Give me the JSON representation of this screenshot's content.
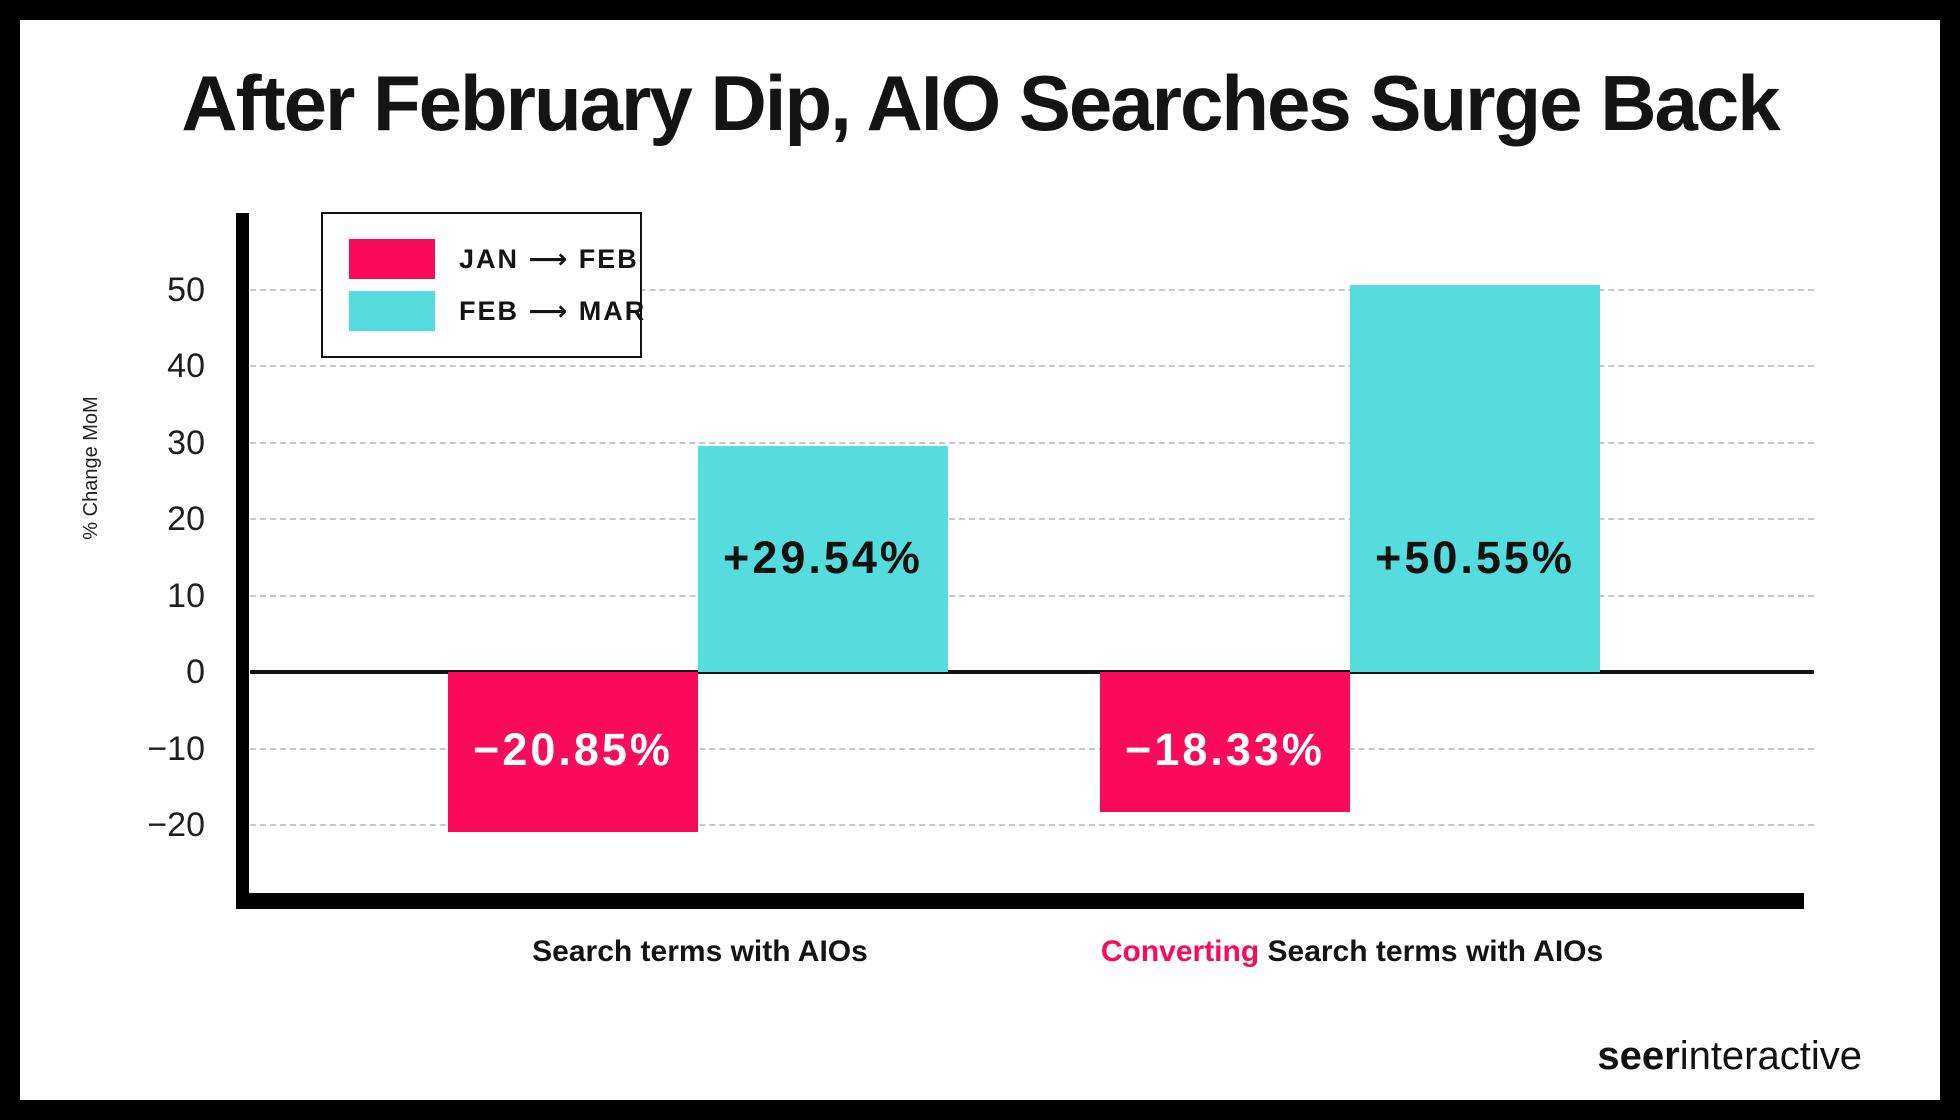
{
  "title": "After February Dip, AIO Searches Surge Back",
  "chart_data": {
    "type": "bar",
    "title": "After February Dip, AIO Searches Surge Back",
    "xlabel": "",
    "ylabel": "% Change MoM",
    "ylim": [
      -30,
      60
    ],
    "grid": "horizontal dashed",
    "legend_position": "upper left boxed",
    "categories": [
      "Search terms with AIOs",
      "Converting Search terms with AIOs"
    ],
    "yticks": [
      {
        "value": 50,
        "label": "50"
      },
      {
        "value": 40,
        "label": "40"
      },
      {
        "value": 30,
        "label": "30"
      },
      {
        "value": 20,
        "label": "20"
      },
      {
        "value": 10,
        "label": "10"
      },
      {
        "value": 0,
        "label": "0"
      },
      {
        "value": -10,
        "label": "−10"
      },
      {
        "value": -20,
        "label": "−20"
      }
    ],
    "series": [
      {
        "name": "JAN ⟶ FEB",
        "color": "#FA0A5A",
        "values": [
          -20.85,
          -18.33
        ],
        "data_labels": [
          "−20.85%",
          "−18.33%"
        ],
        "data_label_color": "#FFFFFF"
      },
      {
        "name": "FEB ⟶ MAR",
        "color": "#55DCDC",
        "values": [
          29.54,
          50.55
        ],
        "data_labels": [
          "+29.54%",
          "+50.55%"
        ],
        "data_label_color": "#111111"
      }
    ],
    "category_label_parts": [
      [
        {
          "text": "Search terms with AIOs",
          "color": "#141414"
        }
      ],
      [
        {
          "text": "Converting ",
          "color": "#FA0A5A"
        },
        {
          "text": "Search terms with AIOs",
          "color": "#141414"
        }
      ]
    ]
  },
  "footer": {
    "logo_bold": "seer",
    "logo_regular": "interactive"
  }
}
